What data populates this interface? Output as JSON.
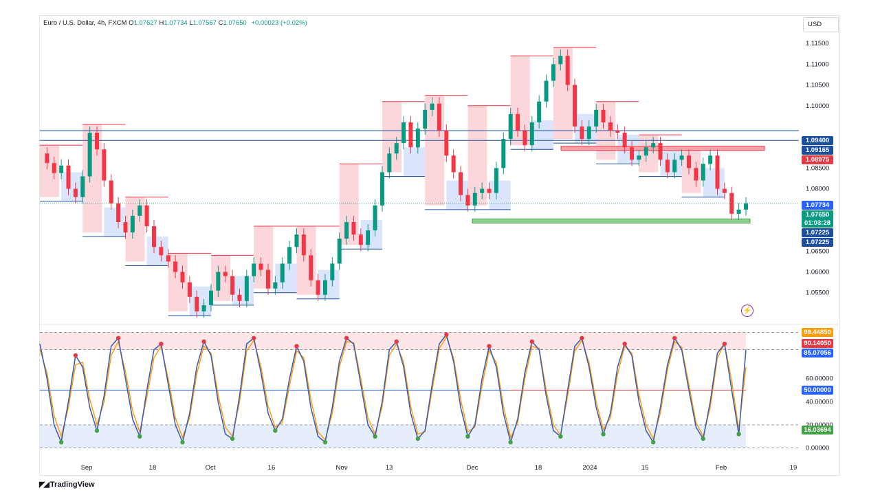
{
  "header": {
    "symbol": "Euro / U.S. Dollar, 4h, FXCM",
    "open_label": "O",
    "open": "1.07627",
    "high_label": "H",
    "high": "1.07734",
    "low_label": "L",
    "low": "1.07567",
    "close_label": "C",
    "close": "1.07650",
    "change": "+0.00023 (+0.02%)"
  },
  "currency": "USD",
  "footer": {
    "brand": "TradingView"
  },
  "colors": {
    "up": "#089981",
    "down": "#f23645",
    "blue_line": "#1c4fa0",
    "red_zone": "#f7b6bf",
    "blue_zone": "#bcd0f7",
    "green_zone": "#8ed08e",
    "k_line": "#3f5fb0",
    "d_line": "#ff9800",
    "overbought_fill": "#fde6e8",
    "oversold_fill": "#e6edfb"
  },
  "price_tags": [
    {
      "text": "1.09400",
      "color": "#1c4fa0"
    },
    {
      "text": "1.09165",
      "color": "#1c4fa0"
    },
    {
      "text": "1.08975",
      "color": "#e53945"
    },
    {
      "text": "1.07734",
      "color": "#2962ff"
    },
    {
      "text": "1.07650",
      "color": "#089981"
    },
    {
      "text": "01:03:28",
      "color": "#089981"
    },
    {
      "text": "1.07225",
      "color": "#1c4fa0"
    },
    {
      "text": "1.07225",
      "color": "#1c4fa0"
    }
  ],
  "osc_tags": [
    {
      "text": "99.44850",
      "color": "#f59e0b"
    },
    {
      "text": "90.14050",
      "color": "#e53945"
    },
    {
      "text": "85.07056",
      "color": "#2962ff"
    },
    {
      "text": "50.00000",
      "color": "#2962ff"
    },
    {
      "text": "16.03694",
      "color": "#43a047"
    }
  ],
  "chart_data": [
    {
      "type": "line",
      "title": "Euro / U.S. Dollar, 4h, FXCM",
      "y_ticks": [
        "1.11500",
        "1.11000",
        "1.10500",
        "1.10000",
        "1.08500",
        "1.08000",
        "1.06500",
        "1.06000",
        "1.05500"
      ],
      "x_ticks": [
        "Sep",
        "18",
        "Oct",
        "16",
        "Nov",
        "13",
        "Dec",
        "18",
        "2024",
        "15",
        "Feb",
        "19"
      ],
      "ylim": [
        1.049,
        1.1175
      ],
      "horizontal_levels": [
        1.094,
        1.09165,
        1.08975,
        1.07225
      ],
      "series": [
        {
          "values": [
            1.0885,
            1.0862,
            1.0838,
            1.0856,
            1.08,
            1.078,
            1.083,
            1.0935,
            1.0895,
            1.082,
            1.0765,
            1.072,
            1.0695,
            1.0735,
            1.076,
            1.071,
            1.066,
            1.064,
            1.0625,
            1.06,
            1.0575,
            1.054,
            1.0505,
            1.052,
            1.0555,
            1.06,
            1.059,
            1.0545,
            1.053,
            1.059,
            1.062,
            1.0605,
            1.056,
            1.0575,
            1.062,
            1.066,
            1.069,
            1.064,
            1.058,
            1.0545,
            1.058,
            1.062,
            1.068,
            1.072,
            1.069,
            1.0665,
            1.07,
            1.076,
            1.084,
            1.0885,
            1.091,
            1.096,
            1.09,
            1.0945,
            1.099,
            1.1005,
            1.094,
            1.088,
            1.084,
            1.0785,
            1.076,
            1.079,
            1.08,
            1.079,
            1.085,
            1.092,
            1.098,
            1.094,
            1.0905,
            1.096,
            1.101,
            1.106,
            1.11,
            1.112,
            1.105,
            1.095,
            1.092,
            1.095,
            1.099,
            1.096,
            1.094,
            1.0935,
            1.09,
            1.087,
            1.088,
            1.09,
            1.091,
            1.087,
            1.084,
            1.087,
            1.088,
            1.085,
            1.082,
            1.086,
            1.088,
            1.08,
            1.079,
            1.074,
            1.075,
            1.0765
          ]
        }
      ]
    },
    {
      "type": "line",
      "y_ticks": [
        "60.00000",
        "40.00000",
        "20.00000",
        "0.00000"
      ],
      "ylim": [
        -2,
        102
      ],
      "horizontal_levels": [
        85,
        50,
        20
      ],
      "series": [
        {
          "values": [
            90,
            60,
            20,
            5,
            40,
            80,
            70,
            35,
            15,
            45,
            88,
            95,
            60,
            25,
            10,
            50,
            85,
            90,
            55,
            20,
            5,
            30,
            70,
            92,
            80,
            40,
            12,
            8,
            45,
            90,
            95,
            65,
            30,
            15,
            25,
            60,
            88,
            75,
            35,
            10,
            5,
            35,
            75,
            95,
            90,
            55,
            20,
            10,
            40,
            85,
            92,
            70,
            30,
            8,
            15,
            55,
            90,
            98,
            75,
            35,
            10,
            20,
            60,
            88,
            70,
            30,
            5,
            25,
            65,
            92,
            85,
            45,
            15,
            10,
            50,
            88,
            95,
            70,
            35,
            12,
            30,
            70,
            90,
            80,
            40,
            15,
            5,
            35,
            72,
            95,
            85,
            50,
            18,
            8,
            40,
            82,
            90,
            50,
            12,
            85
          ]
        },
        {
          "values": [
            85,
            65,
            28,
            10,
            35,
            72,
            74,
            42,
            20,
            40,
            80,
            92,
            66,
            32,
            14,
            44,
            78,
            88,
            60,
            26,
            9,
            26,
            64,
            88,
            82,
            46,
            18,
            10,
            40,
            84,
            93,
            70,
            36,
            18,
            22,
            54,
            84,
            78,
            42,
            14,
            7,
            30,
            70,
            92,
            91,
            60,
            26,
            12,
            36,
            80,
            90,
            74,
            36,
            12,
            14,
            50,
            86,
            96,
            78,
            42,
            14,
            18,
            54,
            84,
            74,
            36,
            9,
            22,
            60,
            88,
            86,
            50,
            20,
            11,
            45,
            84,
            93,
            74,
            40,
            16,
            26,
            64,
            88,
            82,
            46,
            20,
            8,
            30,
            68,
            92,
            87,
            55,
            22,
            10,
            35,
            78,
            90,
            58,
            16,
            70
          ]
        }
      ]
    }
  ]
}
